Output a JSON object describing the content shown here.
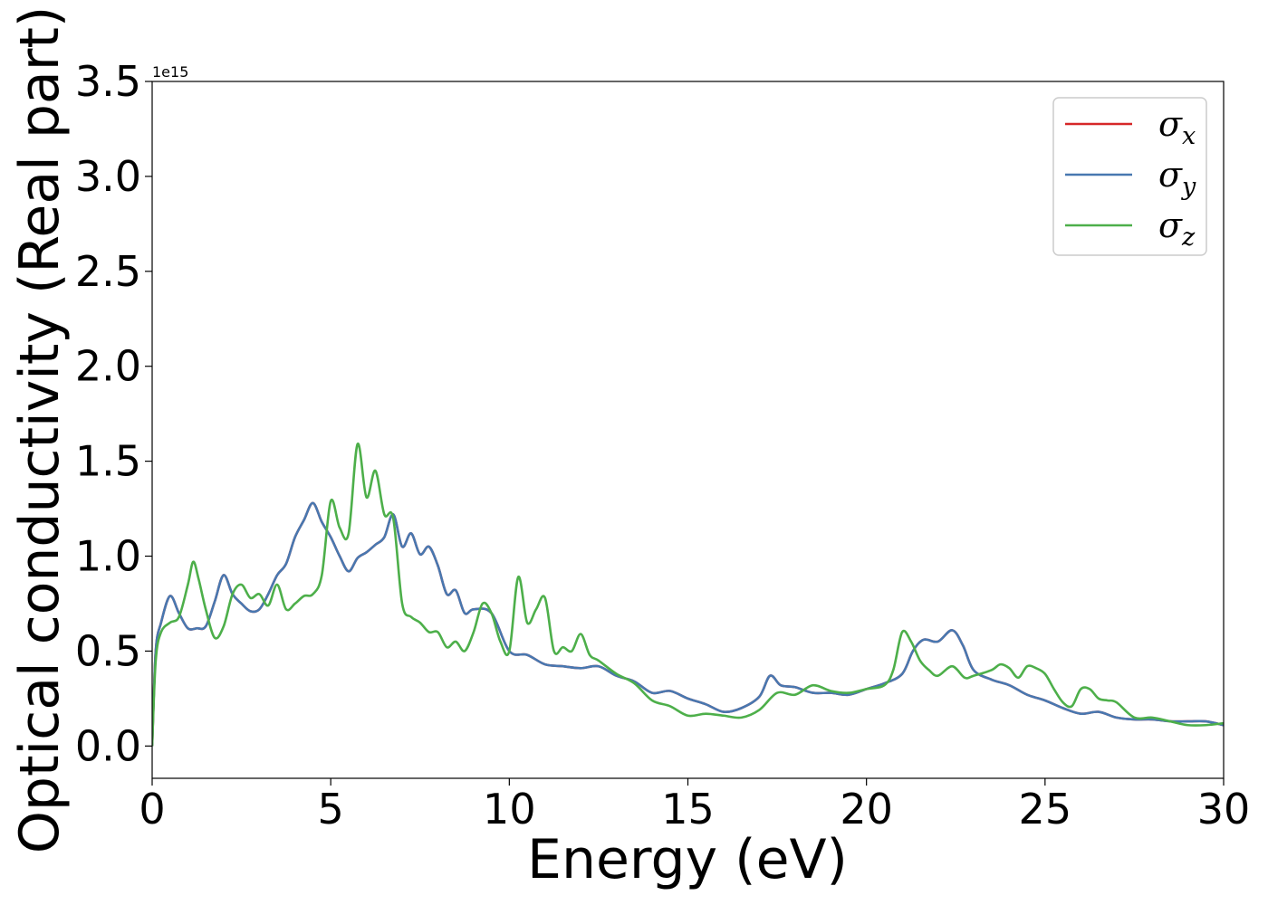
{
  "chart_data": {
    "type": "line",
    "title": "",
    "xlabel": "Energy (eV)",
    "ylabel": "Optical conductivity (Real part)",
    "y_offset_label": "1e15",
    "xlim": [
      0,
      30
    ],
    "ylim": [
      -0.17,
      3.5
    ],
    "xticks": [
      0,
      5,
      10,
      15,
      20,
      25,
      30
    ],
    "xtick_labels": [
      "0",
      "5",
      "10",
      "15",
      "20",
      "25",
      "30"
    ],
    "yticks": [
      0.0,
      0.5,
      1.0,
      1.5,
      2.0,
      2.5,
      3.0,
      3.5
    ],
    "ytick_labels": [
      "0.0",
      "0.5",
      "1.0",
      "1.5",
      "2.0",
      "2.5",
      "3.0",
      "3.5"
    ],
    "grid": false,
    "legend_position": "top-right",
    "series": [
      {
        "name": "σx",
        "label_base": "σ",
        "label_sub": "x",
        "color": "#d62728",
        "x": [
          0,
          0.1,
          0.25,
          0.5,
          0.75,
          1.0,
          1.25,
          1.5,
          1.75,
          2.0,
          2.25,
          2.5,
          2.75,
          3.0,
          3.25,
          3.5,
          3.75,
          4.0,
          4.25,
          4.5,
          4.75,
          5.0,
          5.25,
          5.5,
          5.75,
          6.0,
          6.25,
          6.5,
          6.75,
          7.0,
          7.25,
          7.5,
          7.75,
          8.0,
          8.25,
          8.5,
          8.75,
          9.0,
          9.5,
          10.0,
          10.5,
          11.0,
          11.5,
          12.0,
          12.5,
          13.0,
          13.5,
          14.0,
          14.5,
          15.0,
          15.5,
          16.0,
          16.5,
          17.0,
          17.3,
          17.6,
          18.0,
          18.5,
          19.0,
          19.5,
          20.0,
          20.5,
          21.0,
          21.3,
          21.6,
          22.0,
          22.4,
          22.7,
          23.0,
          23.5,
          24.0,
          24.5,
          25.0,
          25.5,
          26.0,
          26.5,
          27.0,
          27.5,
          28.0,
          28.5,
          29.0,
          29.5,
          30.0
        ],
        "values": [
          0.0,
          0.5,
          0.65,
          0.79,
          0.7,
          0.62,
          0.62,
          0.63,
          0.76,
          0.9,
          0.8,
          0.75,
          0.71,
          0.72,
          0.8,
          0.9,
          0.96,
          1.1,
          1.19,
          1.28,
          1.18,
          1.1,
          1.0,
          0.92,
          0.99,
          1.02,
          1.06,
          1.1,
          1.22,
          1.05,
          1.12,
          1.01,
          1.05,
          0.95,
          0.8,
          0.82,
          0.7,
          0.72,
          0.7,
          0.5,
          0.48,
          0.43,
          0.42,
          0.41,
          0.42,
          0.37,
          0.34,
          0.28,
          0.29,
          0.25,
          0.22,
          0.18,
          0.2,
          0.26,
          0.37,
          0.32,
          0.31,
          0.28,
          0.28,
          0.27,
          0.3,
          0.33,
          0.38,
          0.5,
          0.56,
          0.55,
          0.61,
          0.53,
          0.4,
          0.35,
          0.32,
          0.27,
          0.24,
          0.2,
          0.17,
          0.18,
          0.15,
          0.14,
          0.14,
          0.13,
          0.13,
          0.13,
          0.11
        ]
      },
      {
        "name": "σy",
        "label_base": "σ",
        "label_sub": "y",
        "color": "#4878b0",
        "x": [
          0,
          0.1,
          0.25,
          0.5,
          0.75,
          1.0,
          1.25,
          1.5,
          1.75,
          2.0,
          2.25,
          2.5,
          2.75,
          3.0,
          3.25,
          3.5,
          3.75,
          4.0,
          4.25,
          4.5,
          4.75,
          5.0,
          5.25,
          5.5,
          5.75,
          6.0,
          6.25,
          6.5,
          6.75,
          7.0,
          7.25,
          7.5,
          7.75,
          8.0,
          8.25,
          8.5,
          8.75,
          9.0,
          9.5,
          10.0,
          10.5,
          11.0,
          11.5,
          12.0,
          12.5,
          13.0,
          13.5,
          14.0,
          14.5,
          15.0,
          15.5,
          16.0,
          16.5,
          17.0,
          17.3,
          17.6,
          18.0,
          18.5,
          19.0,
          19.5,
          20.0,
          20.5,
          21.0,
          21.3,
          21.6,
          22.0,
          22.4,
          22.7,
          23.0,
          23.5,
          24.0,
          24.5,
          25.0,
          25.5,
          26.0,
          26.5,
          27.0,
          27.5,
          28.0,
          28.5,
          29.0,
          29.5,
          30.0
        ],
        "values": [
          0.0,
          0.5,
          0.65,
          0.79,
          0.7,
          0.62,
          0.62,
          0.63,
          0.76,
          0.9,
          0.8,
          0.75,
          0.71,
          0.72,
          0.8,
          0.9,
          0.96,
          1.1,
          1.19,
          1.28,
          1.18,
          1.1,
          1.0,
          0.92,
          0.99,
          1.02,
          1.06,
          1.1,
          1.22,
          1.05,
          1.12,
          1.01,
          1.05,
          0.95,
          0.8,
          0.82,
          0.7,
          0.72,
          0.7,
          0.5,
          0.48,
          0.43,
          0.42,
          0.41,
          0.42,
          0.37,
          0.34,
          0.28,
          0.29,
          0.25,
          0.22,
          0.18,
          0.2,
          0.26,
          0.37,
          0.32,
          0.31,
          0.28,
          0.28,
          0.27,
          0.3,
          0.33,
          0.38,
          0.5,
          0.56,
          0.55,
          0.61,
          0.53,
          0.4,
          0.35,
          0.32,
          0.27,
          0.24,
          0.2,
          0.17,
          0.18,
          0.15,
          0.14,
          0.14,
          0.13,
          0.13,
          0.13,
          0.11
        ]
      },
      {
        "name": "σz",
        "label_base": "σ",
        "label_sub": "z",
        "color": "#4daf4a",
        "x": [
          0,
          0.1,
          0.25,
          0.5,
          0.75,
          1.0,
          1.15,
          1.3,
          1.5,
          1.75,
          2.0,
          2.25,
          2.5,
          2.75,
          3.0,
          3.25,
          3.5,
          3.75,
          4.0,
          4.25,
          4.5,
          4.75,
          5.0,
          5.25,
          5.5,
          5.75,
          6.0,
          6.25,
          6.5,
          6.75,
          7.0,
          7.25,
          7.5,
          7.75,
          8.0,
          8.25,
          8.5,
          8.75,
          9.0,
          9.25,
          9.5,
          9.75,
          10.0,
          10.25,
          10.5,
          10.75,
          11.0,
          11.25,
          11.5,
          11.75,
          12.0,
          12.25,
          12.5,
          13.0,
          13.5,
          14.0,
          14.5,
          15.0,
          15.5,
          16.0,
          16.5,
          17.0,
          17.5,
          18.0,
          18.5,
          19.0,
          19.5,
          20.0,
          20.5,
          20.75,
          21.0,
          21.25,
          21.5,
          21.75,
          22.0,
          22.4,
          22.75,
          23.0,
          23.5,
          23.75,
          24.0,
          24.25,
          24.5,
          24.75,
          25.0,
          25.25,
          25.5,
          25.75,
          26.0,
          26.25,
          26.5,
          26.75,
          27.0,
          27.5,
          28.0,
          28.5,
          29.0,
          29.5,
          30.0
        ],
        "values": [
          0.0,
          0.45,
          0.6,
          0.65,
          0.68,
          0.85,
          0.97,
          0.88,
          0.72,
          0.57,
          0.63,
          0.8,
          0.85,
          0.78,
          0.8,
          0.74,
          0.85,
          0.72,
          0.75,
          0.79,
          0.8,
          0.9,
          1.29,
          1.15,
          1.12,
          1.59,
          1.31,
          1.45,
          1.22,
          1.2,
          0.75,
          0.68,
          0.65,
          0.6,
          0.6,
          0.52,
          0.55,
          0.5,
          0.6,
          0.75,
          0.7,
          0.55,
          0.5,
          0.89,
          0.65,
          0.72,
          0.78,
          0.5,
          0.52,
          0.5,
          0.59,
          0.48,
          0.45,
          0.38,
          0.33,
          0.24,
          0.21,
          0.16,
          0.17,
          0.16,
          0.15,
          0.19,
          0.28,
          0.27,
          0.32,
          0.29,
          0.28,
          0.3,
          0.32,
          0.4,
          0.6,
          0.55,
          0.45,
          0.4,
          0.37,
          0.42,
          0.36,
          0.37,
          0.4,
          0.43,
          0.41,
          0.36,
          0.42,
          0.41,
          0.38,
          0.3,
          0.23,
          0.21,
          0.3,
          0.3,
          0.25,
          0.24,
          0.23,
          0.15,
          0.15,
          0.13,
          0.11,
          0.11,
          0.12
        ]
      }
    ]
  }
}
